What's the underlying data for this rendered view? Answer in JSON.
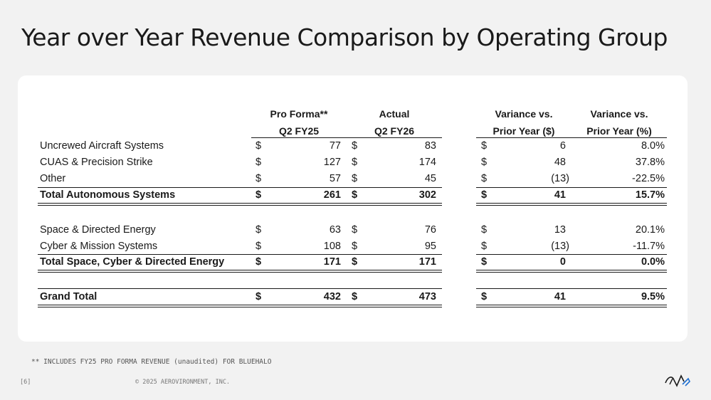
{
  "slide": {
    "title": "Year over Year Revenue Comparison by Operating Group",
    "footnote": "** INCLUDES FY25 PRO FORMA REVENUE (unaudited) FOR BLUEHALO",
    "page_number": "[6]",
    "copyright": "© 2025 AEROVIRONMENT, INC.",
    "logo_text": "AV"
  },
  "table": {
    "headers": {
      "proforma_1": "Pro Forma**",
      "proforma_2": "Q2 FY25",
      "actual_1": "Actual",
      "actual_2": "Q2 FY26",
      "var_usd_1": "Variance vs.",
      "var_usd_2": "Prior Year ($)",
      "var_pct_1": "Variance vs.",
      "var_pct_2": "Prior Year (%)"
    },
    "currency_symbol": "$",
    "rows": [
      {
        "label": "Uncrewed Aircraft Systems",
        "proforma": "77",
        "actual": "83",
        "var_usd": "6",
        "var_pct": "8.0%"
      },
      {
        "label": "CUAS & Precision Strike",
        "proforma": "127",
        "actual": "174",
        "var_usd": "48",
        "var_pct": "37.8%"
      },
      {
        "label": "Other",
        "proforma": "57",
        "actual": "45",
        "var_usd": "(13)",
        "var_pct": "-22.5%"
      },
      {
        "label": "Total Autonomous Systems",
        "proforma": "261",
        "actual": "302",
        "var_usd": "41",
        "var_pct": "15.7%"
      },
      {
        "label": "Space & Directed Energy",
        "proforma": "63",
        "actual": "76",
        "var_usd": "13",
        "var_pct": "20.1%"
      },
      {
        "label": "Cyber & Mission Systems",
        "proforma": "108",
        "actual": "95",
        "var_usd": "(13)",
        "var_pct": "-11.7%"
      },
      {
        "label": "Total Space, Cyber & Directed Energy",
        "proforma": "171",
        "actual": "171",
        "var_usd": "0",
        "var_pct": "0.0%"
      },
      {
        "label": "Grand Total",
        "proforma": "432",
        "actual": "473",
        "var_usd": "41",
        "var_pct": "9.5%"
      }
    ]
  }
}
